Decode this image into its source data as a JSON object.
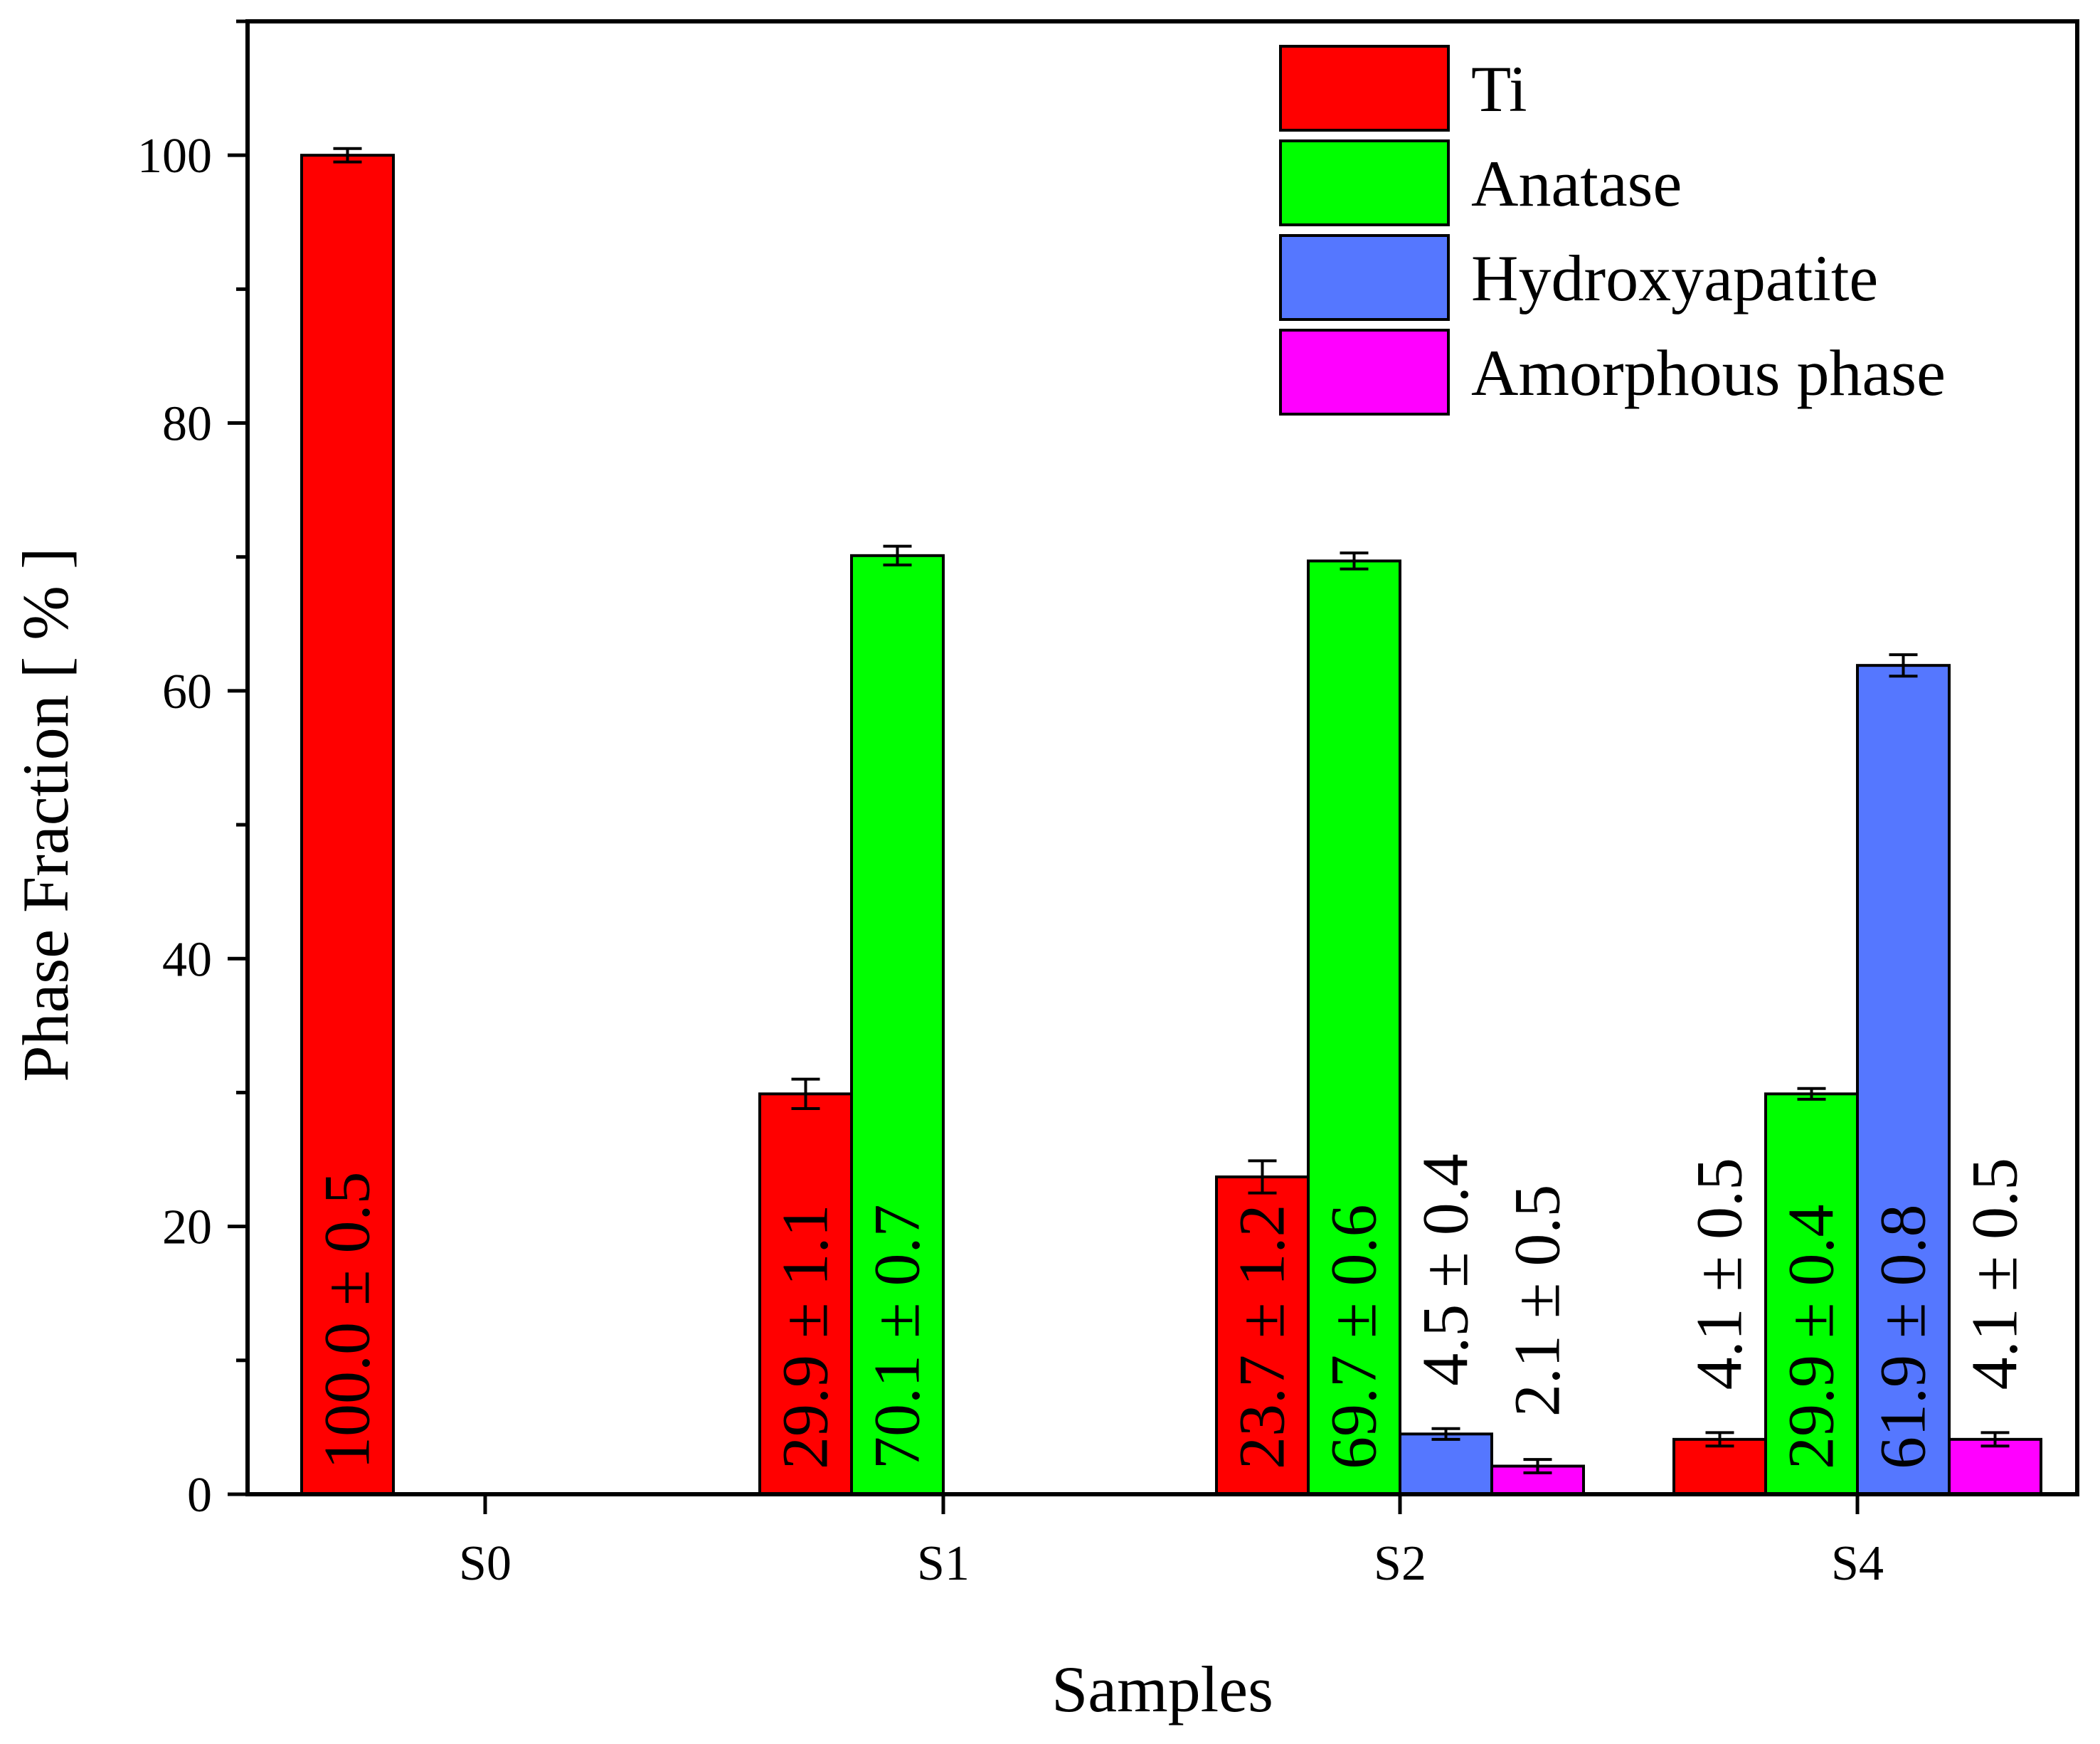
{
  "chart_data": {
    "type": "bar",
    "title": "",
    "xlabel": "Samples",
    "ylabel": "Phase Fraction [ % ]",
    "ylim": [
      0,
      110
    ],
    "yticks": [
      0,
      20,
      40,
      60,
      80,
      100
    ],
    "categories": [
      "S0",
      "S1",
      "S2",
      "S4"
    ],
    "legend_position": "top-right",
    "series": [
      {
        "name": "Ti",
        "color": "#ff0000",
        "values": [
          100.0,
          29.9,
          23.7,
          4.1
        ],
        "errors": [
          0.5,
          1.1,
          1.2,
          0.5
        ],
        "labels": [
          "100.0 ± 0.5",
          "29.9 ± 1.1",
          "23.7 ± 1.2",
          "4.1 ± 0.5"
        ],
        "label_colors": [
          "#000000",
          "#000000",
          "#000000",
          "#000000"
        ]
      },
      {
        "name": "Anatase",
        "color": "#00ff00",
        "values": [
          null,
          70.1,
          69.7,
          29.9
        ],
        "errors": [
          null,
          0.7,
          0.6,
          0.4
        ],
        "labels": [
          "",
          "70.1 ± 0.7",
          "69.7 ± 0.6",
          "29.9 ± 0.4"
        ],
        "label_colors": [
          "#000000",
          "#000000",
          "#000000",
          "#000000"
        ]
      },
      {
        "name": "Hydroxyapatite",
        "color": "#5577ff",
        "values": [
          null,
          null,
          4.5,
          61.9
        ],
        "errors": [
          null,
          null,
          0.4,
          0.8
        ],
        "labels": [
          "",
          "",
          "4.5 ± 0.4",
          "61.9 ± 0.8"
        ],
        "label_colors": [
          "#000000",
          "#000000",
          "#000000",
          "#000000"
        ]
      },
      {
        "name": "Amorphous phase",
        "color": "#ff00ff",
        "values": [
          null,
          null,
          2.1,
          4.1
        ],
        "errors": [
          null,
          null,
          0.5,
          0.5
        ],
        "labels": [
          "",
          "",
          "2.1 ± 0.5",
          "4.1 ± 0.5"
        ],
        "label_colors": [
          "#000000",
          "#000000",
          "#000000",
          "#000000"
        ]
      }
    ]
  }
}
